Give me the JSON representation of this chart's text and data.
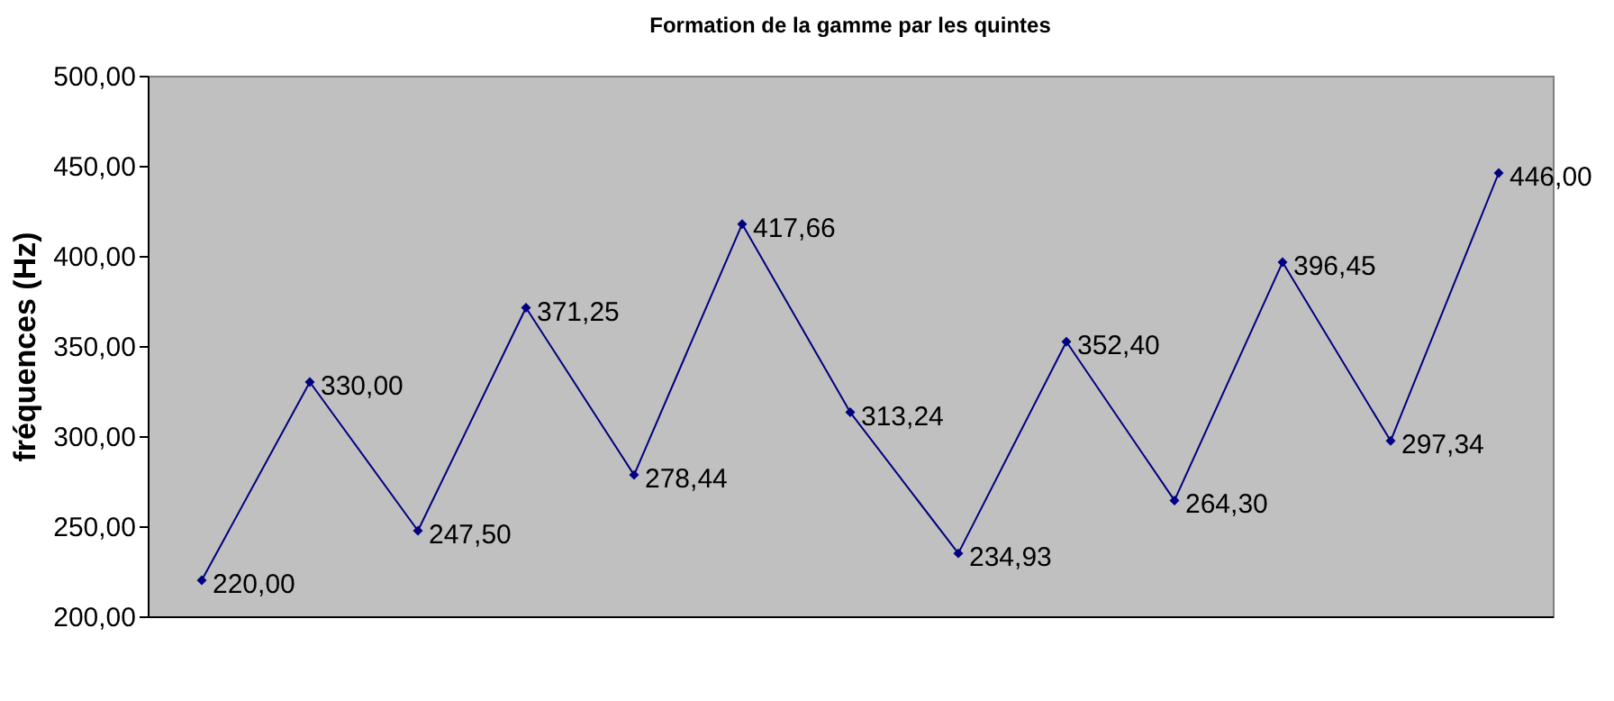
{
  "chart_data": {
    "type": "line",
    "title": "Formation de la gamme par les quintes",
    "ylabel": "fréquences (Hz)",
    "categories": [
      null,
      null,
      null,
      null,
      null,
      null,
      null,
      null,
      null,
      null,
      null,
      null,
      null
    ],
    "series": [
      {
        "color": "#000080",
        "values": [
          220.0,
          330.0,
          247.5,
          371.25,
          278.44,
          417.66,
          313.24,
          234.93,
          352.4,
          264.3,
          396.45,
          297.34,
          446.0
        ],
        "value_labels": [
          "220,00",
          "330,00",
          "247,50",
          "371,25",
          "278,44",
          "417,66",
          "313,24",
          "234,93",
          "352,40",
          "264,30",
          "396,45",
          "297,34",
          "446,00"
        ]
      }
    ],
    "ylim": [
      200,
      500
    ],
    "yticks": [
      {
        "value": 200,
        "label": "200,00"
      },
      {
        "value": 250,
        "label": "250,00"
      },
      {
        "value": 300,
        "label": "300,00"
      },
      {
        "value": 350,
        "label": "350,00"
      },
      {
        "value": 400,
        "label": "400,00"
      },
      {
        "value": 450,
        "label": "450,00"
      },
      {
        "value": 500,
        "label": "500,00"
      }
    ],
    "tick_labels": "y",
    "marker": "diamond",
    "line_style": "solid",
    "grid": false
  }
}
